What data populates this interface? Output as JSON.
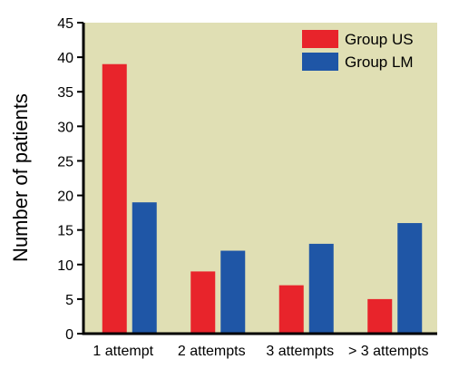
{
  "chart_data": {
    "type": "bar",
    "categories": [
      "1 attempt",
      "2 attempts",
      "3 attempts",
      "> 3 attempts"
    ],
    "series": [
      {
        "name": "Group US",
        "values": [
          39,
          9,
          7,
          5
        ]
      },
      {
        "name": "Group LM",
        "values": [
          19,
          12,
          13,
          16
        ]
      }
    ],
    "title": "",
    "xlabel": "",
    "ylabel": "Number of patients",
    "ylim": [
      0,
      45
    ],
    "yticks": [
      "0",
      "5",
      "10",
      "15",
      "20",
      "25",
      "30",
      "35",
      "40",
      "45"
    ],
    "grid": false,
    "legend": "top-right",
    "colors": {
      "plot_background": "#e0dfb4",
      "Group US": "#e8242b",
      "Group LM": "#1f56a6"
    }
  }
}
